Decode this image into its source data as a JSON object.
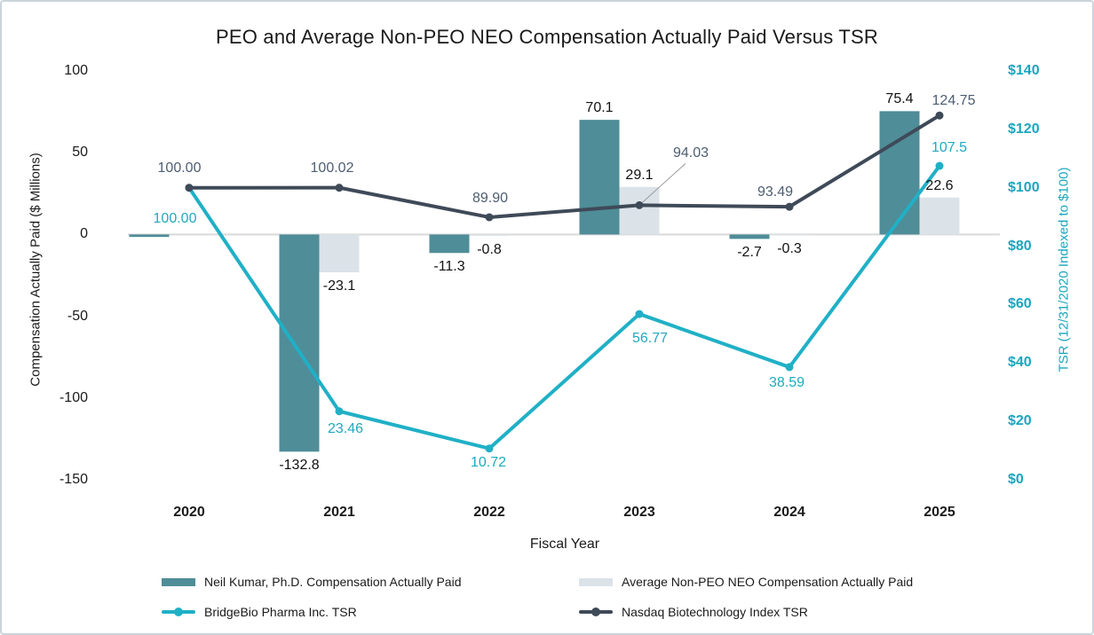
{
  "chart_data": {
    "type": "bar+line",
    "title": "PEO and Average Non-PEO NEO Compensation Actually Paid Versus TSR",
    "xlabel": "Fiscal Year",
    "ylabel_left": "Compensation Actually Paid ($ Millions)",
    "ylabel_right": "TSR (12/31/2020 Indexed to $100)",
    "categories": [
      "2020",
      "2021",
      "2022",
      "2023",
      "2024",
      "2025"
    ],
    "left_axis": {
      "lim": [
        -150,
        100
      ],
      "tick_values": [
        100,
        50,
        0,
        -50,
        -100,
        -150
      ],
      "ticks": [
        "100",
        "50",
        "0",
        "-50",
        "-100",
        "-150"
      ]
    },
    "right_axis": {
      "lim": [
        0,
        140
      ],
      "tick_values": [
        140,
        120,
        100,
        80,
        60,
        40,
        20,
        0
      ],
      "ticks": [
        "$140",
        "$120",
        "$100",
        "$80",
        "$60",
        "$40",
        "$20",
        "$0"
      ]
    },
    "grid": false,
    "legend_position": "bottom",
    "series": [
      {
        "name": "Neil Kumar, Ph.D. Compensation Actually Paid",
        "kind": "bar",
        "axis": "left",
        "color": "#4f8d98",
        "label_color": "#111111",
        "values": [
          -1.5,
          -132.8,
          -11.3,
          70.1,
          -2.7,
          75.4
        ],
        "labels": [
          "",
          "-132.8",
          "-11.3",
          "70.1",
          "-2.7",
          "75.4"
        ]
      },
      {
        "name": "Average Non-PEO NEO Compensation Actually Paid",
        "kind": "bar",
        "axis": "left",
        "color": "#dbe3e9",
        "label_color": "#111111",
        "values": [
          0,
          -23.1,
          -0.8,
          29.1,
          -0.3,
          22.6
        ],
        "labels": [
          "",
          "-23.1",
          "-0.8",
          "29.1",
          "-0.3",
          "22.6"
        ]
      },
      {
        "name": "BridgeBio Pharma Inc. TSR",
        "kind": "line",
        "axis": "right",
        "color": "#20b0c6",
        "label_color": "#1fa9c0",
        "values": [
          100.0,
          23.46,
          10.72,
          56.77,
          38.59,
          107.5
        ],
        "labels": [
          "100.00",
          "23.46",
          "10.72",
          "56.77",
          "38.59",
          "107.5"
        ]
      },
      {
        "name": "Nasdaq Biotechnology Index TSR",
        "kind": "line",
        "axis": "right",
        "color": "#3f4a58",
        "label_color": "#4d5d72",
        "values": [
          100.0,
          100.02,
          89.9,
          94.03,
          93.49,
          124.75
        ],
        "labels": [
          "100.00",
          "100.02",
          "89.90",
          "94.03",
          "93.49",
          "124.75"
        ]
      }
    ]
  },
  "colors": {
    "zero_line": "#d9d9d9",
    "leader_line": "#999999",
    "right_axis_text": "#1ba6bd",
    "border": "#c9d4dd"
  }
}
